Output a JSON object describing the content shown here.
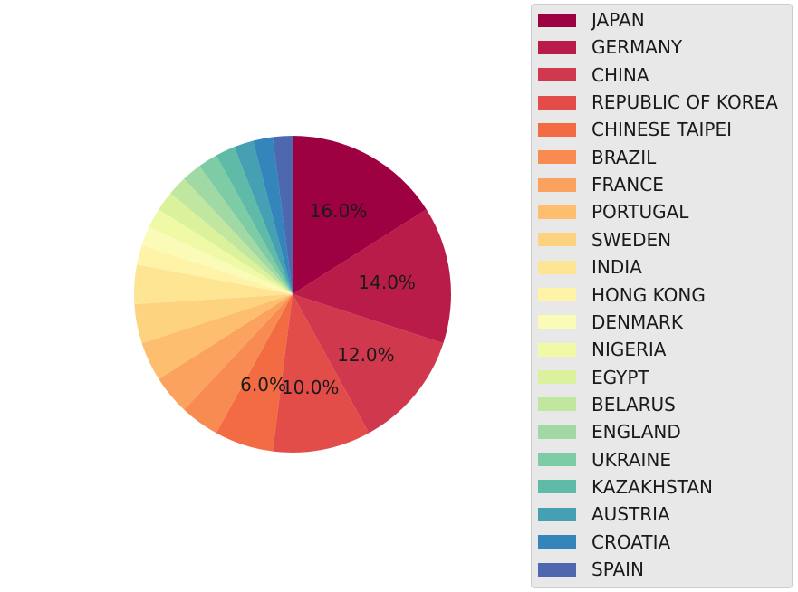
{
  "chart_data": {
    "type": "pie",
    "categories": [
      "JAPAN",
      "GERMANY",
      "CHINA",
      "REPUBLIC OF KOREA",
      "CHINESE TAIPEI",
      "BRAZIL",
      "FRANCE",
      "PORTUGAL",
      "SWEDEN",
      "INDIA",
      "HONG KONG",
      "DENMARK",
      "NIGERIA",
      "EGYPT",
      "BELARUS",
      "ENGLAND",
      "UKRAINE",
      "KAZAKHSTAN",
      "AUSTRIA",
      "CROATIA",
      "SPAIN"
    ],
    "values": [
      16.0,
      14.0,
      12.0,
      10.0,
      6.0,
      4.0,
      4.0,
      4.0,
      4.0,
      4.0,
      2.0,
      2.0,
      2.0,
      2.0,
      2.0,
      2.0,
      2.0,
      2.0,
      2.0,
      2.0,
      2.0
    ],
    "labels": [
      "16.0%",
      "14.0%",
      "12.0%",
      "10.0%",
      "6.0%"
    ],
    "colors": [
      "#9e0142",
      "#b91c48",
      "#d0384d",
      "#e24d4a",
      "#f36b43",
      "#f88b51",
      "#fba35e",
      "#fdbf6f",
      "#fdd380",
      "#fee593",
      "#fff3a8",
      "#fbfbb8",
      "#eff9a6",
      "#dbf19c",
      "#c0e6a0",
      "#a1d9a4",
      "#7ecca5",
      "#5fbaa8",
      "#44a0b2",
      "#3485bc",
      "#4d68ae"
    ],
    "legend_position": "right"
  }
}
